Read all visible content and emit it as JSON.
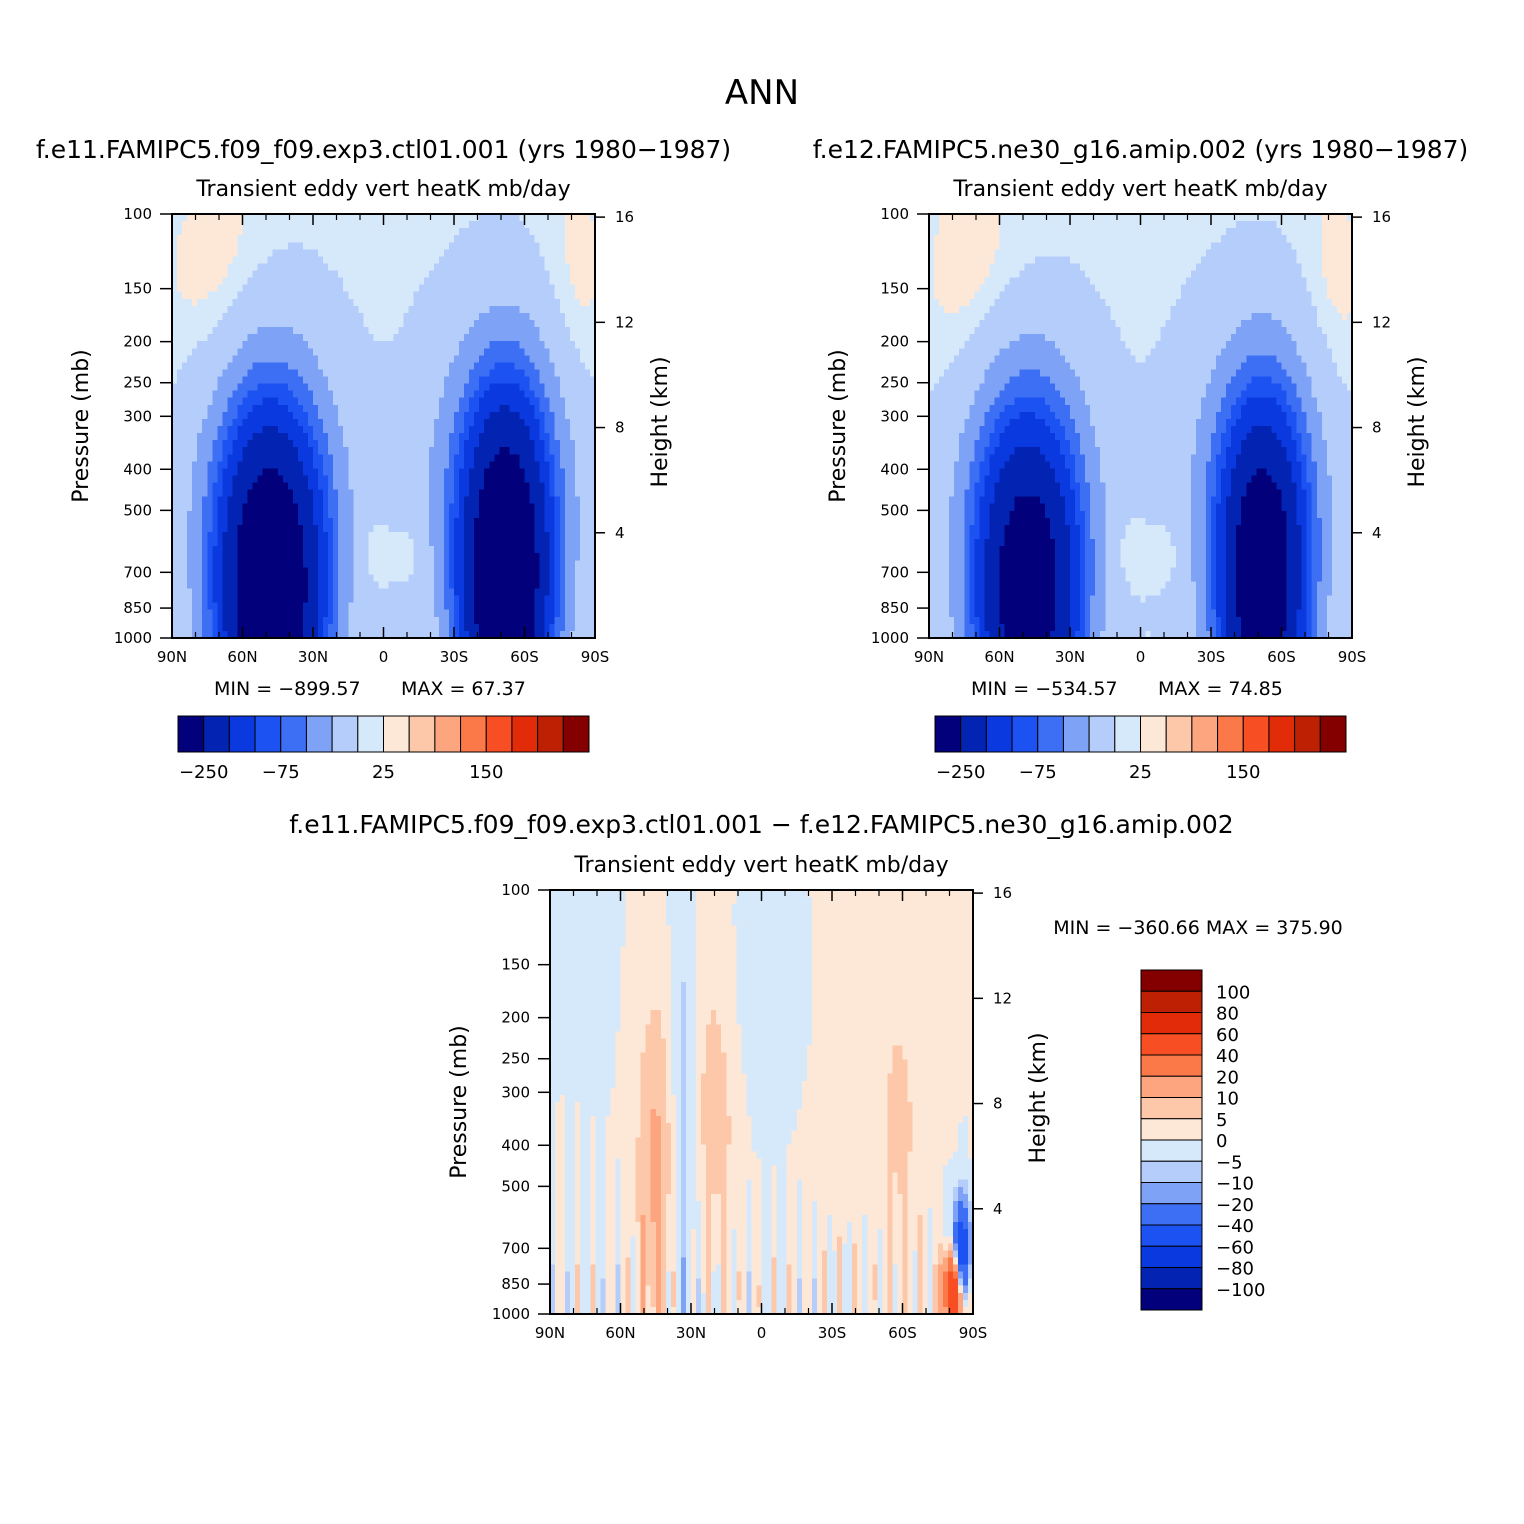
{
  "figure": {
    "title": "ANN"
  },
  "colors": {
    "frame": "#000000",
    "background": "#ffffff"
  },
  "chart_data": [
    {
      "type": "heatmap",
      "name": "case1",
      "case_title": "f.e11.FAMIPC5.f09_f09.exp3.ctl01.001 (yrs 1980−1987)",
      "title": "Transient eddy vert heatK mb/day",
      "xlabel": "",
      "ylabel": "Pressure (mb)",
      "y2label": "Height (km)",
      "x_ticks": [
        "90N",
        "60N",
        "30N",
        "0",
        "30S",
        "60S",
        "90S"
      ],
      "x_range": [
        90,
        -90
      ],
      "y_ticks": [
        "100",
        "150",
        "200",
        "250",
        "300",
        "400",
        "500",
        "700",
        "850",
        "1000"
      ],
      "y_range": [
        100,
        1000
      ],
      "y_scale": "log",
      "y2_ticks": [
        "16",
        "12",
        "8",
        "4"
      ],
      "stats": {
        "min_label": "MIN = −899.57",
        "max_label": "MAX =   67.37"
      },
      "stats_values": {
        "min": -899.57,
        "max": 67.37
      },
      "colorbar": {
        "orientation": "horizontal",
        "labels": [
          "−250",
          "−75",
          "25",
          "150"
        ],
        "colors": [
          "#02007a",
          "#0324b2",
          "#0b39e0",
          "#1c52f2",
          "#3d6ff4",
          "#7da2f6",
          "#b5cdfb",
          "#d6e9fb",
          "#fde8d8",
          "#fdc8aa",
          "#fca57e",
          "#fb7849",
          "#f74f23",
          "#e22c09",
          "#bd2003",
          "#840000"
        ]
      },
      "features": {
        "positive_upper": [
          [
            90,
            80,
            100,
            200
          ],
          [
            -55,
            -90,
            100,
            260
          ]
        ],
        "negative_core": [
          [
            -40,
            -75,
            430,
            1000,
            "deep"
          ],
          [
            70,
            20,
            450,
            1000,
            "deep"
          ]
        ]
      }
    },
    {
      "type": "heatmap",
      "name": "case2",
      "case_title": "f.e12.FAMIPC5.ne30_g16.amip.002 (yrs 1980−1987)",
      "title": "Transient eddy vert heatK mb/day",
      "xlabel": "",
      "ylabel": "Pressure (mb)",
      "y2label": "Height (km)",
      "x_ticks": [
        "90N",
        "60N",
        "30N",
        "0",
        "30S",
        "60S",
        "90S"
      ],
      "x_range": [
        90,
        -90
      ],
      "y_ticks": [
        "100",
        "150",
        "200",
        "250",
        "300",
        "400",
        "500",
        "700",
        "850",
        "1000"
      ],
      "y_range": [
        100,
        1000
      ],
      "y_scale": "log",
      "y2_ticks": [
        "16",
        "12",
        "8",
        "4"
      ],
      "stats": {
        "min_label": "MIN = −534.57",
        "max_label": "MAX =   74.85"
      },
      "stats_values": {
        "min": -534.57,
        "max": 74.85
      },
      "colorbar": {
        "orientation": "horizontal",
        "labels": [
          "−250",
          "−75",
          "25",
          "150"
        ],
        "colors": [
          "#02007a",
          "#0324b2",
          "#0b39e0",
          "#1c52f2",
          "#3d6ff4",
          "#7da2f6",
          "#b5cdfb",
          "#d6e9fb",
          "#fde8d8",
          "#fdc8aa",
          "#fca57e",
          "#fb7849",
          "#f74f23",
          "#e22c09",
          "#bd2003",
          "#840000"
        ]
      }
    },
    {
      "type": "heatmap",
      "name": "difference",
      "case_title": "f.e11.FAMIPC5.f09_f09.exp3.ctl01.001 − f.e12.FAMIPC5.ne30_g16.amip.002",
      "title": "Transient eddy vert heatK mb/day",
      "xlabel": "",
      "ylabel": "Pressure (mb)",
      "y2label": "Height (km)",
      "x_ticks": [
        "90N",
        "60N",
        "30N",
        "0",
        "30S",
        "60S",
        "90S"
      ],
      "x_range": [
        90,
        -90
      ],
      "y_ticks": [
        "100",
        "150",
        "200",
        "250",
        "300",
        "400",
        "500",
        "700",
        "850",
        "1000"
      ],
      "y_range": [
        100,
        1000
      ],
      "y_scale": "log",
      "y2_ticks": [
        "16",
        "12",
        "8",
        "4"
      ],
      "stats": {
        "label": "MIN = −360.66   MAX = 375.90"
      },
      "stats_values": {
        "min": -360.66,
        "max": 375.9
      },
      "colorbar": {
        "orientation": "vertical",
        "labels": [
          "100",
          "80",
          "60",
          "40",
          "20",
          "10",
          "5",
          "0",
          "−5",
          "−10",
          "−20",
          "−40",
          "−60",
          "−80",
          "−100"
        ],
        "colors": [
          "#840000",
          "#bd2003",
          "#e22c09",
          "#f74f23",
          "#fb7849",
          "#fca57e",
          "#fdc8aa",
          "#fde8d8",
          "#d6e9fb",
          "#b5cdfb",
          "#7da2f6",
          "#3d6ff4",
          "#1c52f2",
          "#0b39e0",
          "#0324b2",
          "#02007a"
        ]
      }
    }
  ]
}
